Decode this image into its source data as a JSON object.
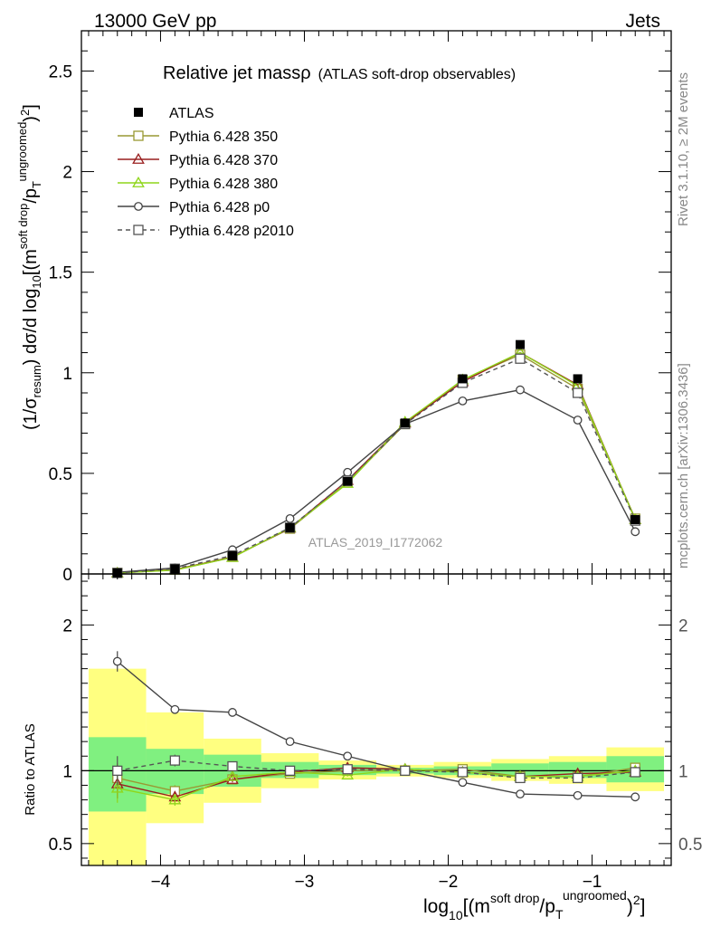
{
  "header": {
    "left": "13000 GeV pp",
    "right": "Jets"
  },
  "chart_data": {
    "type": "line",
    "title_main": "Relative jet massρ",
    "title_sub": "(ATLAS soft-drop observables)",
    "analysis_tag": "ATLAS_2019_I1772062",
    "side_top": "Rivet 3.1.10, ≥ 2M events",
    "side_bottom": "mcplots.cern.ch [arXiv:1306.3436]",
    "ylabel_text": "(1/σresum) dσ/d log10[(m soft drop/pT ungroomed)2]",
    "ylabel_parts": {
      "a": "(1/σ",
      "a_sub": "resum",
      "b": ") dσ/d log",
      "b_sub": "10",
      "c": "[(m",
      "c_sup": "soft drop",
      "d": "/p",
      "d_sub": "T",
      "d_sup": "ungroomed",
      "e": ")",
      "e_sup": "2",
      "f": "]"
    },
    "xlabel_parts": {
      "a": "log",
      "a_sub": "10",
      "b": "[(m",
      "b_sup": "soft drop",
      "c": "/p",
      "c_sub": "T",
      "c_sup": "ungroomed",
      "d": ")",
      "d_sup": "2",
      "e": "]"
    },
    "ratio_ylabel": "Ratio to ATLAS",
    "xlim": [
      -4.55,
      -0.45
    ],
    "main_ylim": [
      0,
      2.7
    ],
    "ratio_ylim": [
      0.35,
      2.35
    ],
    "x_ticks": [
      -4,
      -3,
      -2,
      -1
    ],
    "x_tick_labels": [
      "−4",
      "−3",
      "−2",
      "−1"
    ],
    "main_y_ticks": [
      0,
      0.5,
      1,
      1.5,
      2,
      2.5
    ],
    "main_y_tick_labels": [
      "0",
      "0.5",
      "1",
      "1.5",
      "2",
      "2.5"
    ],
    "ratio_y_ticks": [
      0.5,
      1,
      2
    ],
    "ratio_y_tick_labels": [
      "0.5",
      "1",
      "2"
    ],
    "x": [
      -4.3,
      -3.9,
      -3.5,
      -3.1,
      -2.7,
      -2.3,
      -1.9,
      -1.5,
      -1.1,
      -0.7
    ],
    "bin_edges": [
      -4.5,
      -4.1,
      -3.7,
      -3.3,
      -2.9,
      -2.5,
      -2.1,
      -1.7,
      -1.3,
      -0.9,
      -0.5
    ],
    "data": {
      "name": "ATLAS",
      "values": [
        0.005,
        0.025,
        0.09,
        0.23,
        0.46,
        0.75,
        0.97,
        1.14,
        0.97,
        0.27
      ]
    },
    "uncertainty_bands": {
      "inner": [
        [
          0.72,
          1.23
        ],
        [
          0.84,
          1.15
        ],
        [
          0.89,
          1.11
        ],
        [
          0.95,
          1.06
        ],
        [
          0.97,
          1.04
        ],
        [
          0.98,
          1.02
        ],
        [
          0.97,
          1.03
        ],
        [
          0.96,
          1.05
        ],
        [
          0.95,
          1.06
        ],
        [
          0.92,
          1.1
        ]
      ],
      "outer": [
        [
          0.2,
          1.7
        ],
        [
          0.64,
          1.4
        ],
        [
          0.78,
          1.22
        ],
        [
          0.88,
          1.12
        ],
        [
          0.94,
          1.07
        ],
        [
          0.96,
          1.04
        ],
        [
          0.95,
          1.06
        ],
        [
          0.93,
          1.08
        ],
        [
          0.91,
          1.1
        ],
        [
          0.86,
          1.16
        ]
      ]
    },
    "series": [
      {
        "name": "Pythia 6.428 350",
        "color": "#999933",
        "marker": "square-open",
        "dash": false,
        "values": [
          0.005,
          0.022,
          0.085,
          0.225,
          0.455,
          0.745,
          0.965,
          1.09,
          0.92,
          0.275
        ],
        "ratio": [
          0.95,
          0.86,
          0.94,
          0.98,
          1.0,
          1.0,
          1.01,
          0.96,
          0.96,
          1.02
        ],
        "ratio_err": [
          0.1,
          0.04,
          0.02,
          0.01,
          0.01,
          0.01,
          0.01,
          0.01,
          0.01,
          0.02
        ]
      },
      {
        "name": "Pythia 6.428 370",
        "color": "#991f1f",
        "marker": "triangle-open",
        "dash": false,
        "values": [
          0.005,
          0.02,
          0.083,
          0.228,
          0.465,
          0.75,
          0.955,
          1.1,
          0.94,
          0.27
        ],
        "ratio": [
          0.91,
          0.82,
          0.94,
          0.99,
          1.02,
          1.01,
          0.99,
          0.96,
          0.98,
          0.99
        ],
        "ratio_err": [
          0.1,
          0.04,
          0.02,
          0.01,
          0.01,
          0.01,
          0.01,
          0.01,
          0.01,
          0.02
        ]
      },
      {
        "name": "Pythia 6.428 380",
        "color": "#8fd61a",
        "marker": "triangle-open",
        "dash": false,
        "values": [
          0.005,
          0.019,
          0.082,
          0.23,
          0.45,
          0.755,
          0.965,
          1.1,
          0.935,
          0.27
        ],
        "ratio": [
          0.88,
          0.8,
          0.96,
          0.99,
          0.97,
          1.01,
          0.99,
          0.96,
          0.96,
          1.0
        ],
        "ratio_err": [
          0.1,
          0.04,
          0.02,
          0.01,
          0.01,
          0.01,
          0.01,
          0.01,
          0.01,
          0.02
        ]
      },
      {
        "name": "Pythia 6.428 p0",
        "color": "#444444",
        "marker": "circle-open",
        "dash": false,
        "values": [
          0.008,
          0.03,
          0.12,
          0.275,
          0.505,
          0.745,
          0.86,
          0.915,
          0.765,
          0.21
        ],
        "ratio": [
          1.75,
          1.42,
          1.4,
          1.2,
          1.1,
          1.0,
          0.92,
          0.84,
          0.83,
          0.82
        ],
        "ratio_err": [
          0.07,
          0.03,
          0.02,
          0.01,
          0.01,
          0.01,
          0.01,
          0.01,
          0.01,
          0.01
        ]
      },
      {
        "name": "Pythia 6.428 p2010",
        "color": "#555555",
        "marker": "square-open",
        "dash": true,
        "values": [
          0.005,
          0.026,
          0.092,
          0.23,
          0.465,
          0.745,
          0.95,
          1.07,
          0.9,
          0.265
        ],
        "ratio": [
          1.0,
          1.07,
          1.03,
          1.0,
          1.01,
          1.0,
          0.99,
          0.95,
          0.95,
          0.99
        ],
        "ratio_err": [
          0.1,
          0.04,
          0.02,
          0.01,
          0.01,
          0.01,
          0.01,
          0.01,
          0.01,
          0.02
        ]
      }
    ]
  }
}
